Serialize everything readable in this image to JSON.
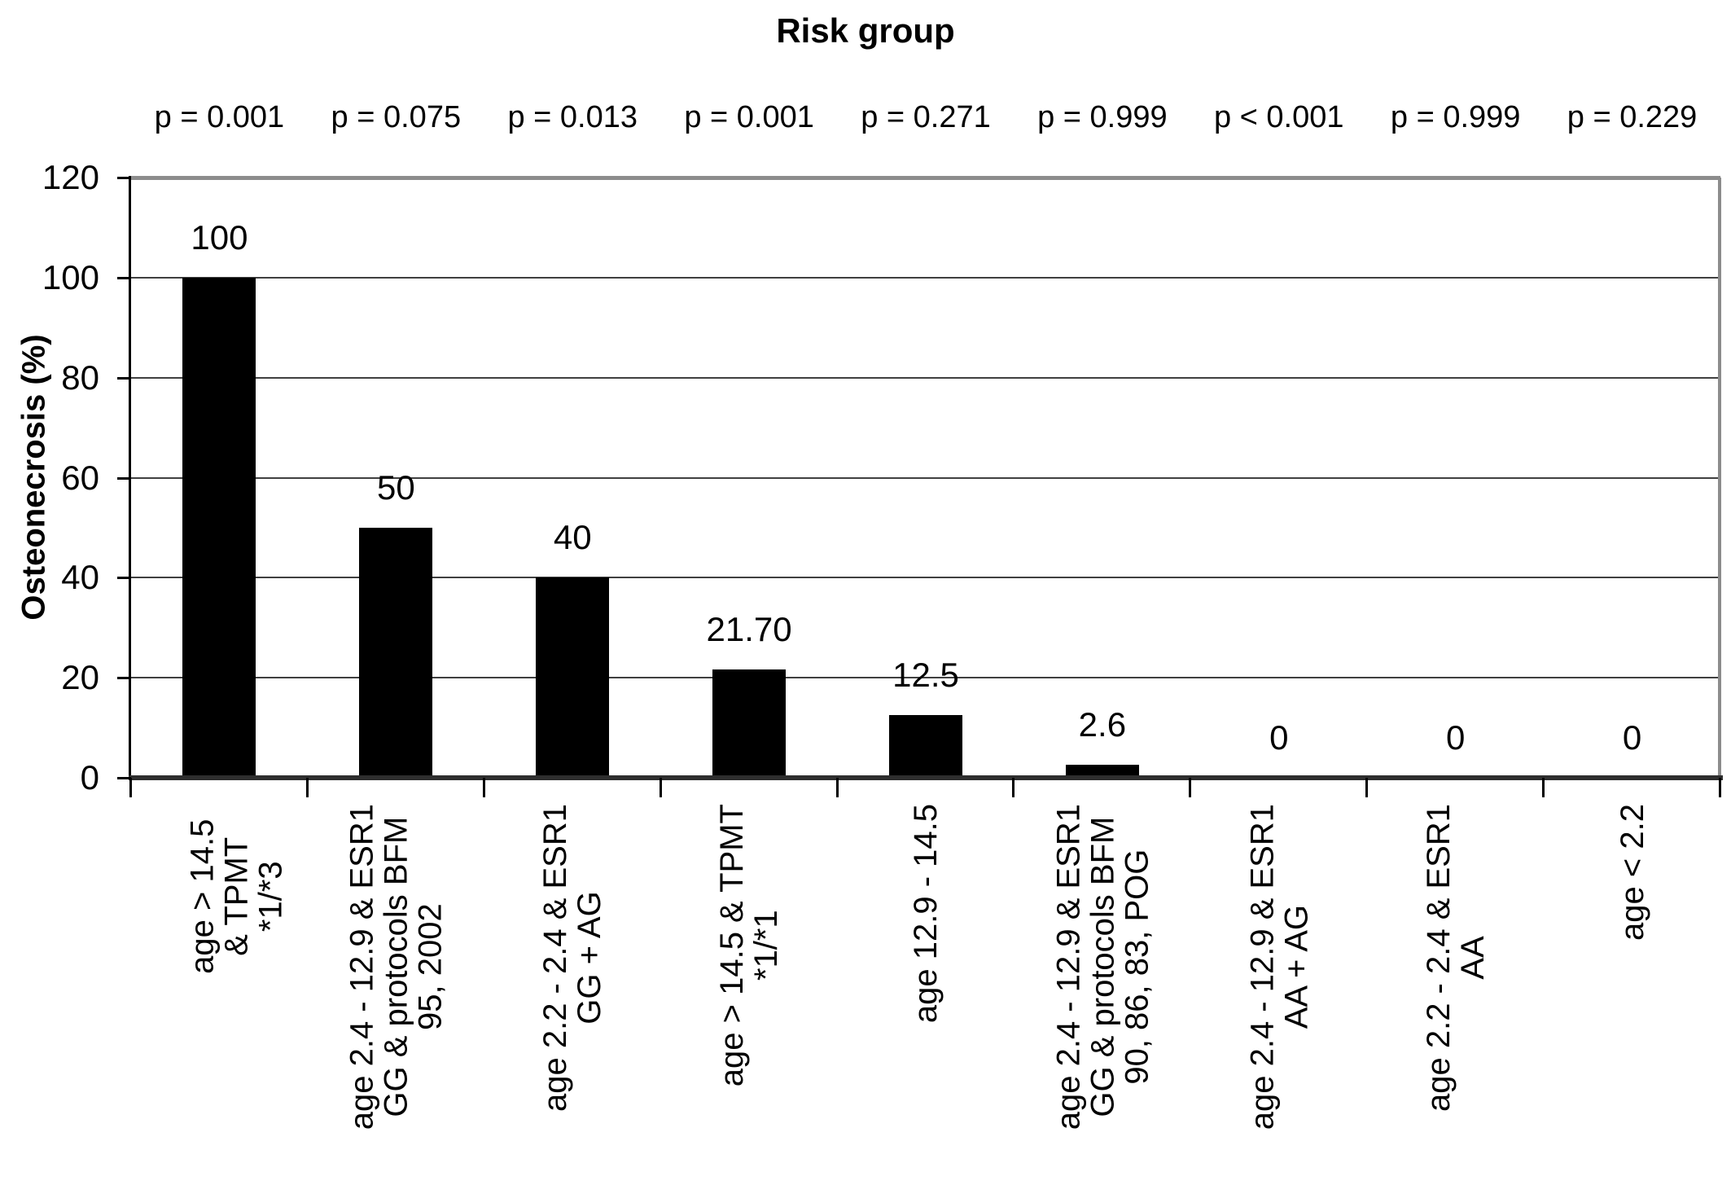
{
  "chart_data": {
    "type": "bar",
    "title": "Risk group",
    "xlabel": "",
    "ylabel": "Osteonecrosis (%)",
    "ylim": [
      0,
      120
    ],
    "yticks": [
      0,
      20,
      40,
      60,
      80,
      100,
      120
    ],
    "grid": "horizontal",
    "legend": "none",
    "bar_color": "#000000",
    "gridline_color": "#404040",
    "outer_border_color": "#8c8c8c",
    "axis_color": "#000000",
    "categories": [
      "age > 14.5 & TPMT\n*1/*3",
      "age 2.4 - 12.9 & ESR1\nGG & protocols BFM\n95, 2002",
      "age 2.2 - 2.4 & ESR1\nGG + AG",
      "age > 14.5 & TPMT\n*1/*1",
      "age 12.9 - 14.5",
      "age 2.4 - 12.9 & ESR1\nGG & protocols BFM\n90, 86, 83, POG",
      "age 2.4 - 12.9 & ESR1\nAA + AG",
      "age 2.2 - 2.4 & ESR1\nAA",
      "age < 2.2"
    ],
    "values": [
      100,
      50,
      40,
      21.7,
      12.5,
      2.6,
      0,
      0,
      0
    ],
    "value_labels": [
      "100",
      "50",
      "40",
      "21.70",
      "12.5",
      "2.6",
      "0",
      "0",
      "0"
    ],
    "p_values": [
      "p = 0.001",
      "p = 0.075",
      "p = 0.013",
      "p = 0.001",
      "p = 0.271",
      "p = 0.999",
      "p < 0.001",
      "p = 0.999",
      "p = 0.229"
    ]
  }
}
